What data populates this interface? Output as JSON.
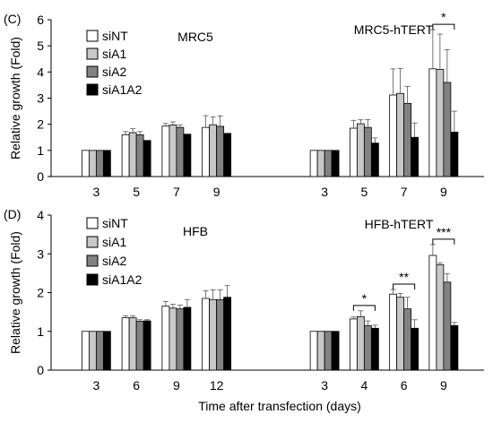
{
  "xlabel": "Time after transfection (days)",
  "legend_labels": [
    "siNT",
    "siA1",
    "siA2",
    "siA1A2"
  ],
  "colors": {
    "siNT": "#ffffff",
    "siA1": "#c8c8c8",
    "siA2": "#828282",
    "siA1A2": "#000000"
  },
  "chart_data": [
    {
      "type": "bar",
      "panel_label": "(C)",
      "ylabel": "Relative growth (Fold)",
      "ylim": [
        0,
        6
      ],
      "yticks": [
        "0",
        "1",
        "2",
        "3",
        "4",
        "5",
        "6"
      ],
      "legend": "top-left",
      "groups": [
        {
          "name": "MRC5",
          "categories": [
            "3",
            "5",
            "7",
            "9"
          ],
          "series": [
            {
              "name": "siNT",
              "values": [
                1,
                1.6,
                1.93,
                1.88
              ],
              "errors": [
                0,
                0.12,
                0.1,
                0.45
              ]
            },
            {
              "name": "siA1",
              "values": [
                1,
                1.68,
                1.97,
                1.98
              ],
              "errors": [
                0,
                0.15,
                0.12,
                0.3
              ]
            },
            {
              "name": "siA2",
              "values": [
                1,
                1.6,
                1.88,
                1.92
              ],
              "errors": [
                0,
                0.12,
                0.1,
                0.4
              ]
            },
            {
              "name": "siA1A2",
              "values": [
                1,
                1.38,
                1.62,
                1.65
              ],
              "errors": [
                0,
                0,
                0,
                0
              ]
            }
          ]
        },
        {
          "name": "MRC5-hTERT",
          "categories": [
            "3",
            "5",
            "7",
            "9"
          ],
          "series": [
            {
              "name": "siNT",
              "values": [
                1,
                1.85,
                3.12,
                4.12
              ],
              "errors": [
                0,
                0.3,
                1.0,
                1.5
              ]
            },
            {
              "name": "siA1",
              "values": [
                1,
                2.02,
                3.18,
                4.1
              ],
              "errors": [
                0,
                0.15,
                0.95,
                1.35
              ]
            },
            {
              "name": "siA2",
              "values": [
                1,
                1.88,
                2.8,
                3.6
              ],
              "errors": [
                0,
                0.3,
                0.65,
                1.25
              ]
            },
            {
              "name": "siA1A2",
              "values": [
                1,
                1.28,
                1.5,
                1.7
              ],
              "errors": [
                0,
                0.2,
                0.55,
                0.8
              ]
            }
          ],
          "significance": [
            {
              "category": "9",
              "label": "*"
            }
          ]
        }
      ]
    },
    {
      "type": "bar",
      "panel_label": "(D)",
      "ylabel": "Relative growth (Fold)",
      "ylim": [
        0,
        4
      ],
      "yticks": [
        "0",
        "1",
        "2",
        "3",
        "4"
      ],
      "legend": "top-left",
      "groups": [
        {
          "name": "HFB",
          "categories": [
            "3",
            "6",
            "9",
            "12"
          ],
          "series": [
            {
              "name": "siNT",
              "values": [
                1,
                1.35,
                1.65,
                1.85
              ],
              "errors": [
                0,
                0.05,
                0.12,
                0.2
              ]
            },
            {
              "name": "siA1",
              "values": [
                1,
                1.35,
                1.6,
                1.82
              ],
              "errors": [
                0,
                0.05,
                0.1,
                0.25
              ]
            },
            {
              "name": "siA2",
              "values": [
                1,
                1.26,
                1.58,
                1.82
              ],
              "errors": [
                0,
                0.04,
                0.1,
                0.25
              ]
            },
            {
              "name": "siA1A2",
              "values": [
                1,
                1.27,
                1.62,
                1.88
              ],
              "errors": [
                0,
                0.03,
                0.2,
                0.3
              ]
            }
          ]
        },
        {
          "name": "HFB-hTERT",
          "categories": [
            "3",
            "4",
            "6",
            "9"
          ],
          "series": [
            {
              "name": "siNT",
              "values": [
                1,
                1.32,
                1.96,
                2.96
              ],
              "errors": [
                0,
                0.05,
                0.12,
                0.28
              ]
            },
            {
              "name": "siA1",
              "values": [
                1,
                1.38,
                1.88,
                2.72
              ],
              "errors": [
                0,
                0.15,
                0.1,
                0.05
              ]
            },
            {
              "name": "siA2",
              "values": [
                1,
                1.15,
                1.58,
                2.27
              ],
              "errors": [
                0,
                0.12,
                0.3,
                0.22
              ]
            },
            {
              "name": "siA1A2",
              "values": [
                1,
                1.08,
                1.08,
                1.15
              ],
              "errors": [
                0,
                0.08,
                0.22,
                0.08
              ]
            }
          ],
          "significance": [
            {
              "category": "4",
              "label": "*"
            },
            {
              "category": "6",
              "label": "**"
            },
            {
              "category": "9",
              "label": "***"
            }
          ]
        }
      ]
    }
  ]
}
